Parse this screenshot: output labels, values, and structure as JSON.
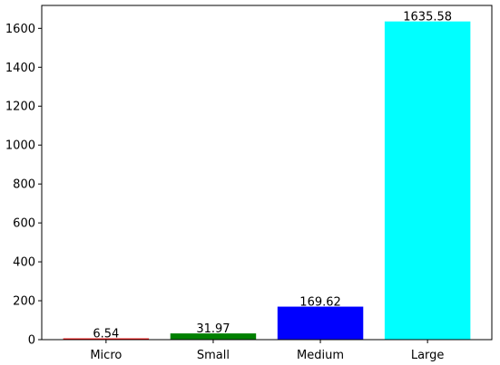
{
  "chart_data": {
    "type": "bar",
    "title": "",
    "xlabel": "",
    "ylabel": "",
    "categories": [
      "Micro",
      "Small",
      "Medium",
      "Large"
    ],
    "values": [
      6.54,
      31.97,
      169.62,
      1635.58
    ],
    "value_labels": [
      "6.54",
      "31.97",
      "169.62",
      "1635.58"
    ],
    "colors": [
      "#ff0000",
      "#008000",
      "#0000ff",
      "#00ffff"
    ],
    "ylim": [
      0,
      1717.86
    ],
    "yticks": [
      0,
      200,
      400,
      600,
      800,
      1000,
      1200,
      1400,
      1600
    ],
    "grid": false,
    "legend": "none"
  }
}
